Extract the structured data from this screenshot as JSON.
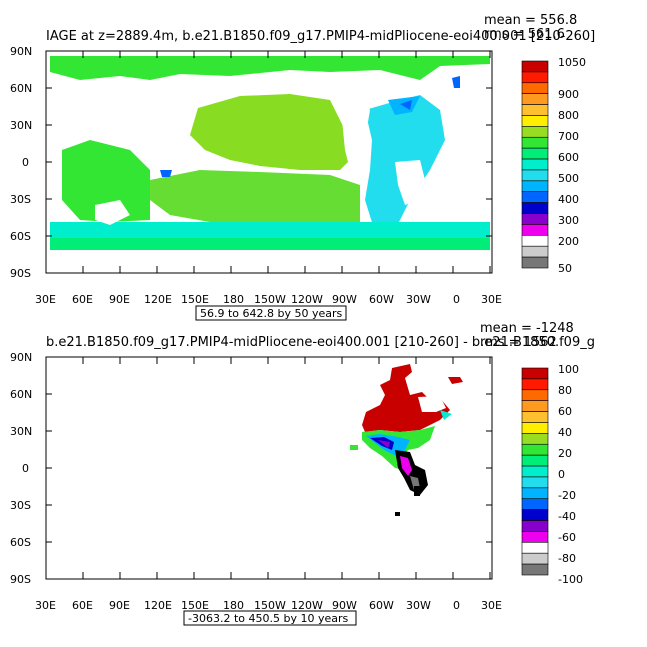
{
  "panels": [
    {
      "title": "IAGE at z=2889.4m, b.e21.B1850.f09_g17.PMIP4-midPliocene-eoi400.001 [210-260]",
      "stats_mean": "mean = 556.8",
      "stats_rms": "rms = 561.6",
      "range_note": "56.9 to 642.8 by 50 years",
      "lon_ticks": [
        "30E",
        "60E",
        "90E",
        "120E",
        "150E",
        "180",
        "150W",
        "120W",
        "90W",
        "60W",
        "30W",
        "0",
        "30E"
      ],
      "lat_ticks": [
        "90N",
        "60N",
        "30N",
        "0",
        "30S",
        "60S",
        "90S"
      ],
      "colorbar": {
        "labels": [
          "1050",
          "900",
          "800",
          "700",
          "600",
          "500",
          "400",
          "300",
          "200",
          "50"
        ],
        "colors": [
          "#c80000",
          "#ff1a00",
          "#ff6a00",
          "#ff9a20",
          "#ffc030",
          "#ffee00",
          "#99dd22",
          "#33e633",
          "#00ee77",
          "#00eecc",
          "#22ddee",
          "#00b4ff",
          "#0066ff",
          "#0000cc",
          "#8800cc",
          "#ee00ee",
          "#ffffff",
          "#cccccc",
          "#777777"
        ]
      }
    },
    {
      "title": "b.e21.B1850.f09_g17.PMIP4-midPliocene-eoi400.001 [210-260] - b.e21.B1850.f09_g",
      "stats_mean": "mean = -1248",
      "stats_rms": "rms = 1562",
      "range_note": "-3063.2 to 450.5 by 10 years",
      "lon_ticks": [
        "30E",
        "60E",
        "90E",
        "120E",
        "150E",
        "180",
        "150W",
        "120W",
        "90W",
        "60W",
        "30W",
        "0",
        "30E"
      ],
      "lat_ticks": [
        "90N",
        "60N",
        "30N",
        "0",
        "30S",
        "60S",
        "90S"
      ],
      "colorbar": {
        "labels": [
          "100",
          "80",
          "60",
          "40",
          "20",
          "0",
          "-20",
          "-40",
          "-60",
          "-80",
          "-100"
        ],
        "colors": [
          "#c80000",
          "#ff1a00",
          "#ff6a00",
          "#ff9a20",
          "#ffc030",
          "#ffee00",
          "#99dd22",
          "#33e633",
          "#00ee77",
          "#00eecc",
          "#22ddee",
          "#00b4ff",
          "#0066ff",
          "#0000cc",
          "#8800cc",
          "#ee00ee",
          "#ffffff",
          "#cccccc",
          "#777777"
        ]
      }
    }
  ]
}
